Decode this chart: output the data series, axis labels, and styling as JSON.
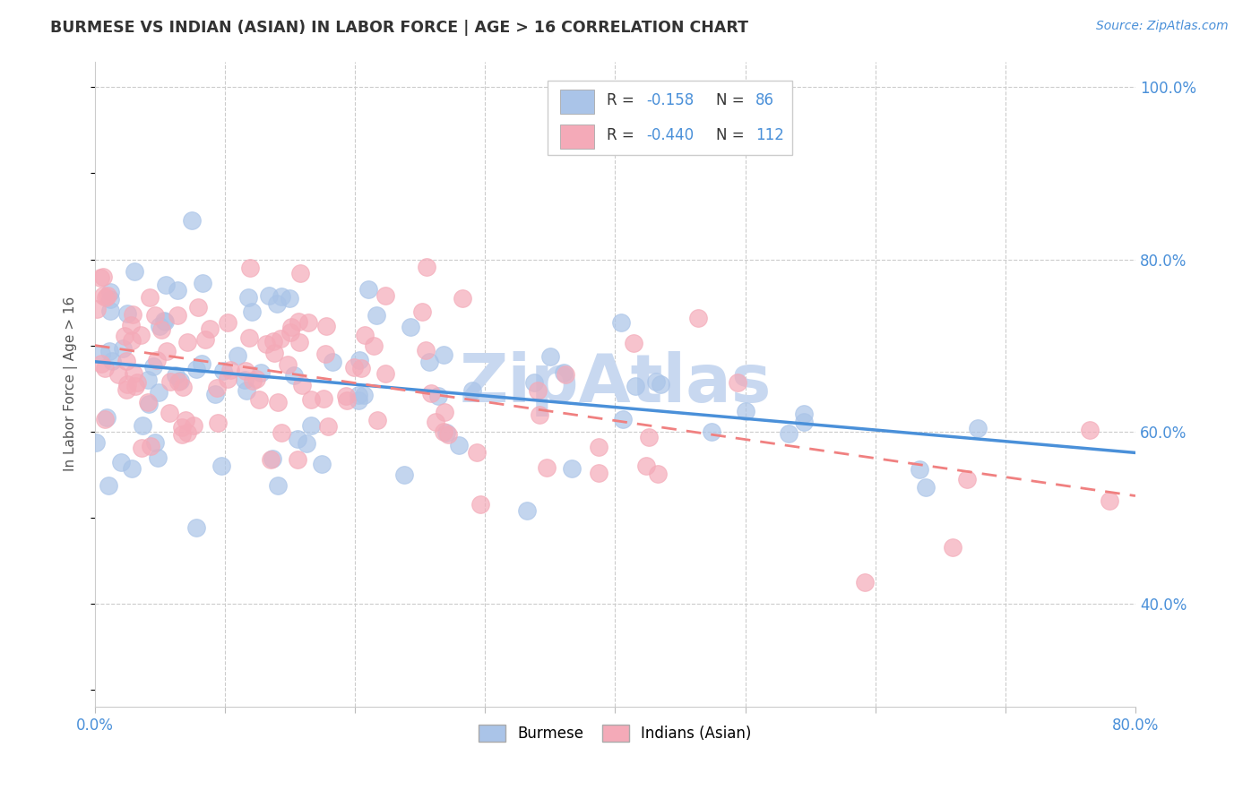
{
  "title": "BURMESE VS INDIAN (ASIAN) IN LABOR FORCE | AGE > 16 CORRELATION CHART",
  "source": "Source: ZipAtlas.com",
  "ylabel": "In Labor Force | Age > 16",
  "xlim": [
    0.0,
    0.8
  ],
  "ylim": [
    0.28,
    1.03
  ],
  "yticks_right": [
    0.4,
    0.6,
    0.8,
    1.0
  ],
  "yticklabels_right": [
    "40.0%",
    "60.0%",
    "80.0%",
    "100.0%"
  ],
  "grid_color": "#cccccc",
  "background_color": "#ffffff",
  "watermark_color": "#c8d8f0",
  "burmese_color": "#aac4e8",
  "indians_color": "#f4aab8",
  "burmese_line_color": "#4a90d9",
  "indians_line_color": "#f08080",
  "burmese_seed": 77,
  "indians_seed": 55,
  "legend_box_color": "#ffffff",
  "legend_border_color": "#cccccc"
}
